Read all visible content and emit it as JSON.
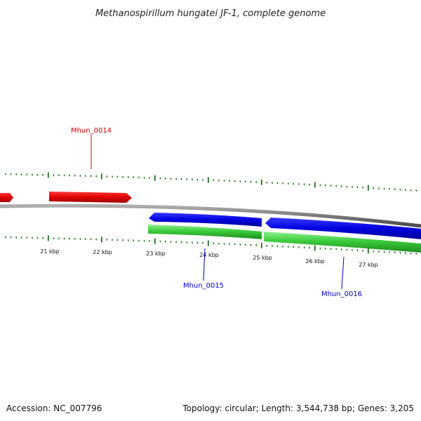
{
  "title": "Methanospirillum hungatei JF-1, complete genome",
  "accession": "Accession: NC_007796",
  "summary": "Topology: circular; Length: 3,544,738 bp; Genes: 3,205",
  "colors": {
    "forward_cds": "#e00000",
    "reverse_cds": "#0000dd",
    "reverse_gene": "#33cc33",
    "backbone": "#888888",
    "ticks": "#006600",
    "forward_label": "#cc0000",
    "reverse_label": "#0000cc"
  },
  "scale_ticks": [
    "21 kbp",
    "22 kbp",
    "23 kbp",
    "24 kbp",
    "25 kbp",
    "26 kbp",
    "27 kbp"
  ],
  "gene_labels": [
    {
      "id": "Mhun_0014",
      "strand": "forward"
    },
    {
      "id": "Mhun_0015",
      "strand": "reverse"
    },
    {
      "id": "Mhun_0016",
      "strand": "reverse"
    }
  ]
}
